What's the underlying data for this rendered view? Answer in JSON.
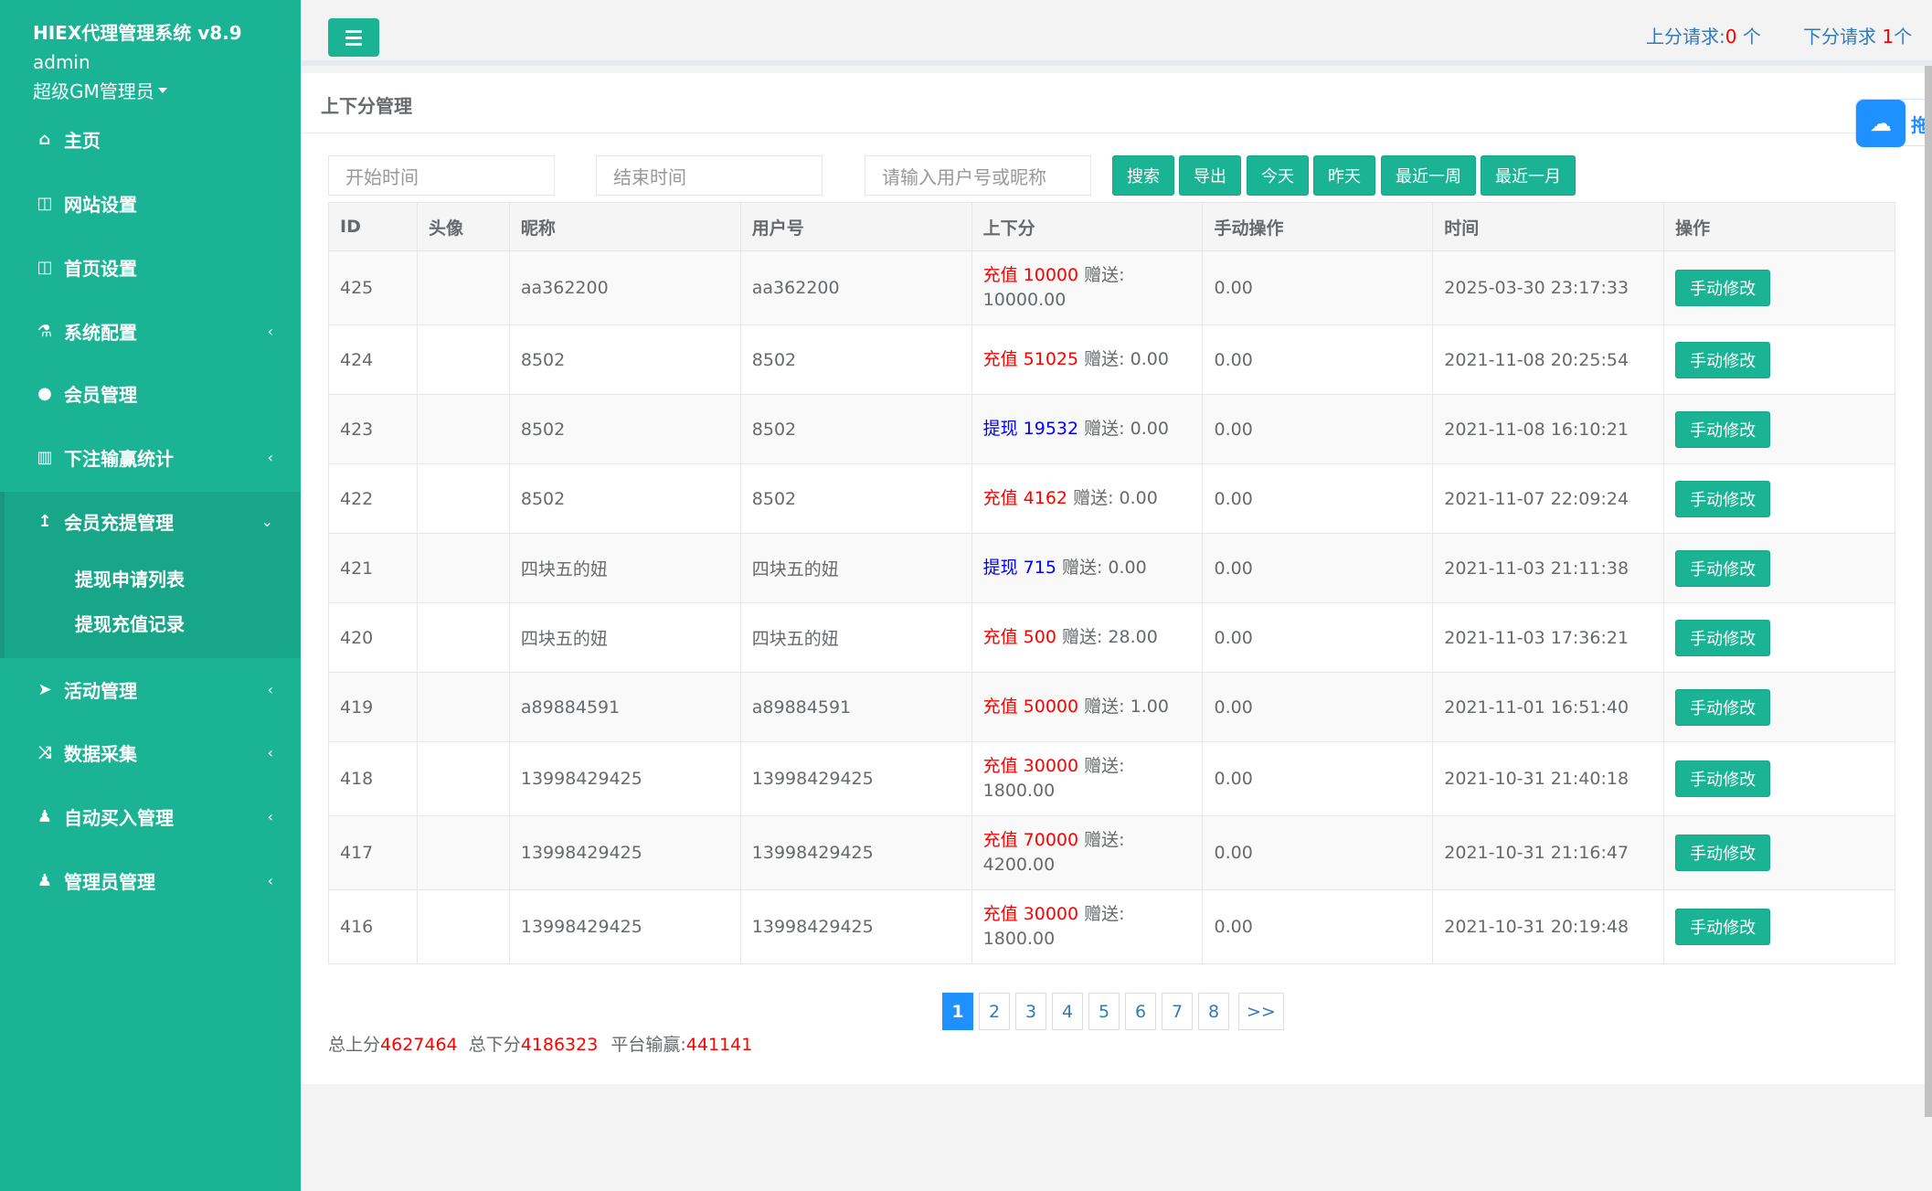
{
  "sidebar": {
    "brand": "HIEX代理管理系统 v8.9",
    "user_name": "admin",
    "user_role": "超级GM管理员",
    "items": [
      {
        "label": "主页",
        "icon": "home-icon",
        "glyph": "⌂",
        "has_chevron": false
      },
      {
        "label": "网站设置",
        "icon": "columns-icon",
        "glyph": "◫",
        "has_chevron": false
      },
      {
        "label": "首页设置",
        "icon": "columns-icon",
        "glyph": "◫",
        "has_chevron": false
      },
      {
        "label": "系统配置",
        "icon": "flask-icon",
        "glyph": "⚗",
        "has_chevron": true
      },
      {
        "label": "会员管理",
        "icon": "user-icon",
        "glyph": "●",
        "has_chevron": false
      },
      {
        "label": "下注输赢统计",
        "icon": "bar-chart-icon",
        "glyph": "▥",
        "has_chevron": true
      },
      {
        "label": "会员充提管理",
        "icon": "upload-icon",
        "glyph": "↥",
        "has_chevron": true,
        "expanded": true
      },
      {
        "label": "活动管理",
        "icon": "paper-plane-icon",
        "glyph": "➤",
        "has_chevron": true
      },
      {
        "label": "数据采集",
        "icon": "shuffle-icon",
        "glyph": "⤨",
        "has_chevron": true
      },
      {
        "label": "自动买入管理",
        "icon": "male-icon",
        "glyph": "♟",
        "has_chevron": true
      },
      {
        "label": "管理员管理",
        "icon": "male-icon",
        "glyph": "♟",
        "has_chevron": true
      }
    ],
    "sub_items": [
      "提现申请列表",
      "提现充值记录"
    ]
  },
  "topbar": {
    "up_label": "上分请求:",
    "up_count": "0",
    "up_unit": " 个",
    "down_label": "下分请求 ",
    "down_count": "1",
    "down_unit": "个"
  },
  "panel": {
    "title": "上下分管理",
    "filters": {
      "start_placeholder": "开始时间",
      "end_placeholder": "结束时间",
      "user_placeholder": "请输入用户号或昵称"
    },
    "buttons": [
      "搜索",
      "导出",
      "今天",
      "昨天",
      "最近一周",
      "最近一月"
    ]
  },
  "table": {
    "headers": [
      "ID",
      "头像",
      "昵称",
      "用户号",
      "上下分",
      "手动操作",
      "时间",
      "操作"
    ],
    "rows": [
      {
        "id": "425",
        "nick": "aa362200",
        "uid": "aa362200",
        "type": "充值",
        "amount": "10000",
        "gift": "赠送: 10000.00",
        "manual": "0.00",
        "time": "2025-03-30 23:17:33",
        "op": "手动修改"
      },
      {
        "id": "424",
        "nick": "8502",
        "uid": "8502",
        "type": "充值",
        "amount": "51025",
        "gift": "赠送: 0.00",
        "manual": "0.00",
        "time": "2021-11-08 20:25:54",
        "op": "手动修改"
      },
      {
        "id": "423",
        "nick": "8502",
        "uid": "8502",
        "type": "提现",
        "amount": "19532",
        "gift": "赠送: 0.00",
        "manual": "0.00",
        "time": "2021-11-08 16:10:21",
        "op": "手动修改"
      },
      {
        "id": "422",
        "nick": "8502",
        "uid": "8502",
        "type": "充值",
        "amount": "4162",
        "gift": "赠送: 0.00",
        "manual": "0.00",
        "time": "2021-11-07 22:09:24",
        "op": "手动修改"
      },
      {
        "id": "421",
        "nick": "四块五的妞",
        "uid": "四块五的妞",
        "type": "提现",
        "amount": "715",
        "gift": "赠送: 0.00",
        "manual": "0.00",
        "time": "2021-11-03 21:11:38",
        "op": "手动修改"
      },
      {
        "id": "420",
        "nick": "四块五的妞",
        "uid": "四块五的妞",
        "type": "充值",
        "amount": "500",
        "gift": "赠送: 28.00",
        "manual": "0.00",
        "time": "2021-11-03 17:36:21",
        "op": "手动修改"
      },
      {
        "id": "419",
        "nick": "a89884591",
        "uid": "a89884591",
        "type": "充值",
        "amount": "50000",
        "gift": "赠送: 1.00",
        "manual": "0.00",
        "time": "2021-11-01 16:51:40",
        "op": "手动修改"
      },
      {
        "id": "418",
        "nick": "13998429425",
        "uid": "13998429425",
        "type": "充值",
        "amount": "30000",
        "gift": "赠送: 1800.00",
        "manual": "0.00",
        "time": "2021-10-31 21:40:18",
        "op": "手动修改"
      },
      {
        "id": "417",
        "nick": "13998429425",
        "uid": "13998429425",
        "type": "充值",
        "amount": "70000",
        "gift": "赠送: 4200.00",
        "manual": "0.00",
        "time": "2021-10-31 21:16:47",
        "op": "手动修改"
      },
      {
        "id": "416",
        "nick": "13998429425",
        "uid": "13998429425",
        "type": "充值",
        "amount": "30000",
        "gift": "赠送: 1800.00",
        "manual": "0.00",
        "time": "2021-10-31 20:19:48",
        "op": "手动修改"
      }
    ]
  },
  "pagination": {
    "pages": [
      "1",
      "2",
      "3",
      "4",
      "5",
      "6",
      "7",
      "8"
    ],
    "active": "1",
    "next": ">>"
  },
  "totals": {
    "up_label": "总上分",
    "up_value": "4627464",
    "down_label": "总下分",
    "down_value": "4186323",
    "win_label": "平台输赢:",
    "win_value": "441141"
  },
  "float_tool": {
    "text": "拖",
    "icon": "baidu-cloud-icon"
  },
  "colors": {
    "accent": "#1ab394",
    "red": "#ff0000",
    "blue": "#0000ff",
    "link": "#337ab7"
  }
}
